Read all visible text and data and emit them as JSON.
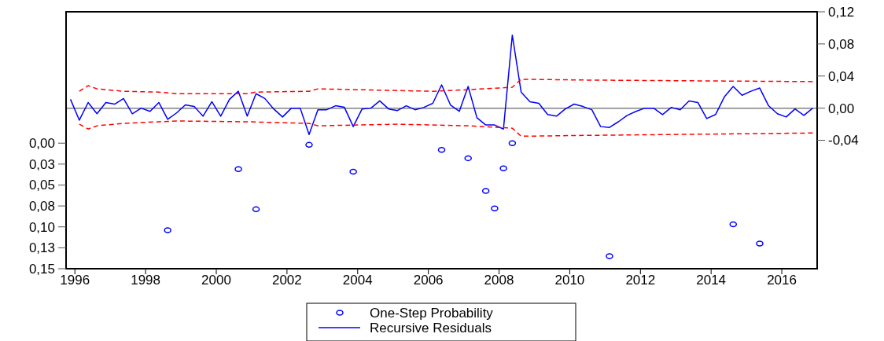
{
  "chart_data": {
    "type": "line",
    "xlim": [
      1995.75,
      2017
    ],
    "xticks": [
      1996,
      1998,
      2000,
      2002,
      2004,
      2006,
      2008,
      2010,
      2012,
      2014,
      2016
    ],
    "ylim": [
      0.15,
      -0.157
    ],
    "yticks": [
      {
        "value": 0,
        "label": "0,00"
      },
      {
        "value": 0.025,
        "label": "0,03"
      },
      {
        "value": 0.05,
        "label": "0,05"
      },
      {
        "value": 0.075,
        "label": "0,08"
      },
      {
        "value": 0.1,
        "label": "0,10"
      },
      {
        "value": 0.125,
        "label": "0,13"
      },
      {
        "value": 0.15,
        "label": "0,15"
      }
    ],
    "y2lim": [
      -0.2,
      0.12
    ],
    "y2ticks": [
      {
        "value": 0.12,
        "label": "0,12"
      },
      {
        "value": 0.08,
        "label": "0,08"
      },
      {
        "value": 0.04,
        "label": "0,04"
      },
      {
        "value": 0,
        "label": "0,00"
      },
      {
        "value": -0.04,
        "label": "-0,04"
      }
    ],
    "ref_lines": [
      {
        "axis": "y2",
        "value": 0,
        "color": "#808080"
      }
    ],
    "legend": "bottom",
    "grid": false,
    "series": [
      {
        "type": "scatter",
        "name": "One-Step Probability",
        "color": "#0000ff",
        "marker": "circle",
        "x": [
          1998.625,
          2000.625,
          2001.125,
          2002.625,
          2003.875,
          2006.375,
          2007.125,
          2007.625,
          2007.875,
          2008.125,
          2008.375,
          2011.125,
          2014.625,
          2015.375
        ],
        "values": [
          0.104,
          0.031,
          0.079,
          0.002,
          0.034,
          0.008,
          0.018,
          0.057,
          0.078,
          0.03,
          0,
          0.135,
          0.097,
          0.12
        ]
      },
      {
        "axis": "y2",
        "name": "Recursive Residuals",
        "color": "#0000ff",
        "line_style": "solid",
        "x": [
          1995.875,
          1996.125,
          1996.375,
          1996.625,
          1996.875,
          1997.125,
          1997.375,
          1997.625,
          1997.875,
          1998.125,
          1998.375,
          1998.625,
          1998.875,
          1999.125,
          1999.375,
          1999.625,
          1999.875,
          2000.125,
          2000.375,
          2000.625,
          2000.875,
          2001.125,
          2001.375,
          2001.625,
          2001.875,
          2002.125,
          2002.375,
          2002.625,
          2002.875,
          2003.125,
          2003.375,
          2003.625,
          2003.875,
          2004.125,
          2004.375,
          2004.625,
          2004.875,
          2005.125,
          2005.375,
          2005.625,
          2005.875,
          2006.125,
          2006.375,
          2006.625,
          2006.875,
          2007.125,
          2007.375,
          2007.625,
          2007.875,
          2008.125,
          2008.375,
          2008.625,
          2008.875,
          2009.125,
          2009.375,
          2009.625,
          2009.875,
          2010.125,
          2010.375,
          2010.625,
          2010.875,
          2011.125,
          2011.375,
          2011.625,
          2011.875,
          2012.125,
          2012.375,
          2012.625,
          2012.875,
          2013.125,
          2013.375,
          2013.625,
          2013.875,
          2014.125,
          2014.375,
          2014.625,
          2014.875,
          2015.125,
          2015.375,
          2015.625,
          2015.875,
          2016.125,
          2016.375,
          2016.625,
          2016.875
        ],
        "values": [
          0.011,
          -0.015,
          0.007,
          -0.007,
          0.007,
          0.005,
          0.012,
          -0.007,
          0,
          -0.004,
          0.007,
          -0.014,
          -0.006,
          0.004,
          0.002,
          -0.01,
          0.008,
          -0.01,
          0.011,
          0.021,
          -0.01,
          0.018,
          0.012,
          -0.001,
          -0.011,
          0,
          0,
          -0.033,
          -0.002,
          -0.002,
          0.003,
          0.001,
          -0.023,
          -0.001,
          0,
          0.009,
          -0.001,
          -0.003,
          0.003,
          -0.002,
          0.001,
          0.006,
          0.029,
          0.004,
          -0.004,
          0.027,
          -0.012,
          -0.021,
          -0.021,
          -0.026,
          0.091,
          0.02,
          0.008,
          0.006,
          -0.008,
          -0.01,
          -0.001,
          0.005,
          0.002,
          -0.002,
          -0.023,
          -0.024,
          -0.017,
          -0.009,
          -0.004,
          0,
          0,
          -0.008,
          0.001,
          -0.002,
          0.009,
          0.007,
          -0.013,
          -0.008,
          0.014,
          0.027,
          0.016,
          0.021,
          0.025,
          0.003,
          -0.007,
          -0.011,
          -0.001,
          -0.009,
          0
        ]
      },
      {
        "axis": "y2",
        "color": "#ff0000",
        "line_style": "dashed",
        "x": [
          1996.125,
          1996.375,
          1996.625,
          1996.875,
          1997.375,
          1998.375,
          1998.875,
          2000.875,
          2001.125,
          2002.625,
          2002.875,
          2006.125,
          2007.125,
          2008.375,
          2008.625,
          2010.375,
          2016.875
        ],
        "values": [
          0.021,
          0.028,
          0.024,
          0.023,
          0.021,
          0.02,
          0.018,
          0.018,
          0.02,
          0.021,
          0.024,
          0.021,
          0.023,
          0.026,
          0.036,
          0.035,
          0.033
        ]
      },
      {
        "axis": "y2",
        "color": "#ff0000",
        "line_style": "dashed",
        "x": [
          1996.125,
          1996.375,
          1996.625,
          1997.375,
          1998.875,
          2000.875,
          2002.625,
          2002.875,
          2005.125,
          2007.125,
          2008.375,
          2008.625,
          2010.375,
          2016.875
        ],
        "values": [
          -0.02,
          -0.026,
          -0.022,
          -0.019,
          -0.016,
          -0.017,
          -0.019,
          -0.022,
          -0.02,
          -0.022,
          -0.025,
          -0.035,
          -0.034,
          -0.031
        ]
      }
    ]
  }
}
